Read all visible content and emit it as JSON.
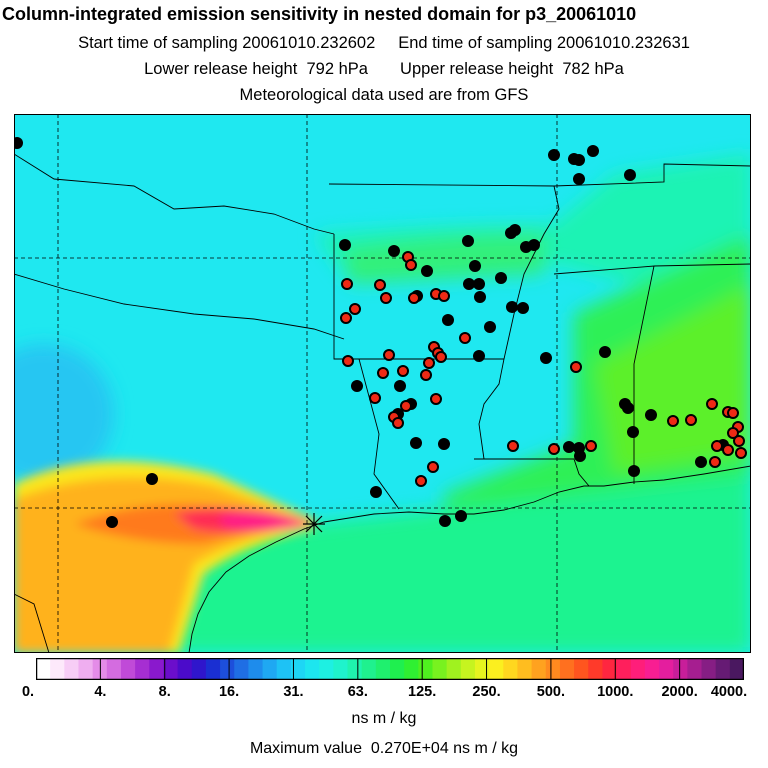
{
  "header": {
    "title": "Column-integrated emission sensitivity in nested domain for p3_20061010",
    "line2": "Start time of sampling 20061010.232602     End time of sampling 20061010.232631",
    "line3": "Lower release height  792 hPa       Upper release height  782 hPa",
    "line4": "Meteorological data used are from GFS"
  },
  "legend": {
    "units": "ns m / kg",
    "max_value": "Maximum value  0.270E+04 ns m / kg",
    "ticks": [
      "0.",
      "4.",
      "8.",
      "16.",
      "31.",
      "63.",
      "125.",
      "250.",
      "500.",
      "1000.",
      "2000.",
      "4000."
    ],
    "colors": [
      "#ffffff",
      "#fde9fb",
      "#f7cdf6",
      "#efaef0",
      "#e48ce8",
      "#d46ce0",
      "#c04ad8",
      "#a62ed2",
      "#8a19cd",
      "#6b0ecb",
      "#4b0bca",
      "#2f16cc",
      "#1a2fd2",
      "#1d4fdb",
      "#1f6ee4",
      "#1e8cec",
      "#1fa8f2",
      "#1ec2f5",
      "#1ed6f5",
      "#1de6ef",
      "#1ef0e2",
      "#1ff3cc",
      "#1ff3ae",
      "#1ff18e",
      "#1ff06e",
      "#1fef4f",
      "#2ff032",
      "#4ff01f",
      "#78f21f",
      "#a0f21f",
      "#c6f41f",
      "#e6f51f",
      "#fbef1f",
      "#ffd71f",
      "#ffbd1f",
      "#ffa21f",
      "#ff8a1f",
      "#ff701f",
      "#ff551f",
      "#ff3a2a",
      "#ff2640",
      "#ff1f5c",
      "#ff1e7a",
      "#f81e92",
      "#e41e9e",
      "#c81e9a",
      "#a61e90",
      "#861e84",
      "#661b74",
      "#4a1860"
    ]
  },
  "chart_data": {
    "type": "map",
    "title": "Column-integrated emission sensitivity in nested domain for p3_20061010",
    "release_site": "star marker at the Gulf coast of Texas",
    "receptor_points_black": 48,
    "receptor_points_red": 44
  }
}
